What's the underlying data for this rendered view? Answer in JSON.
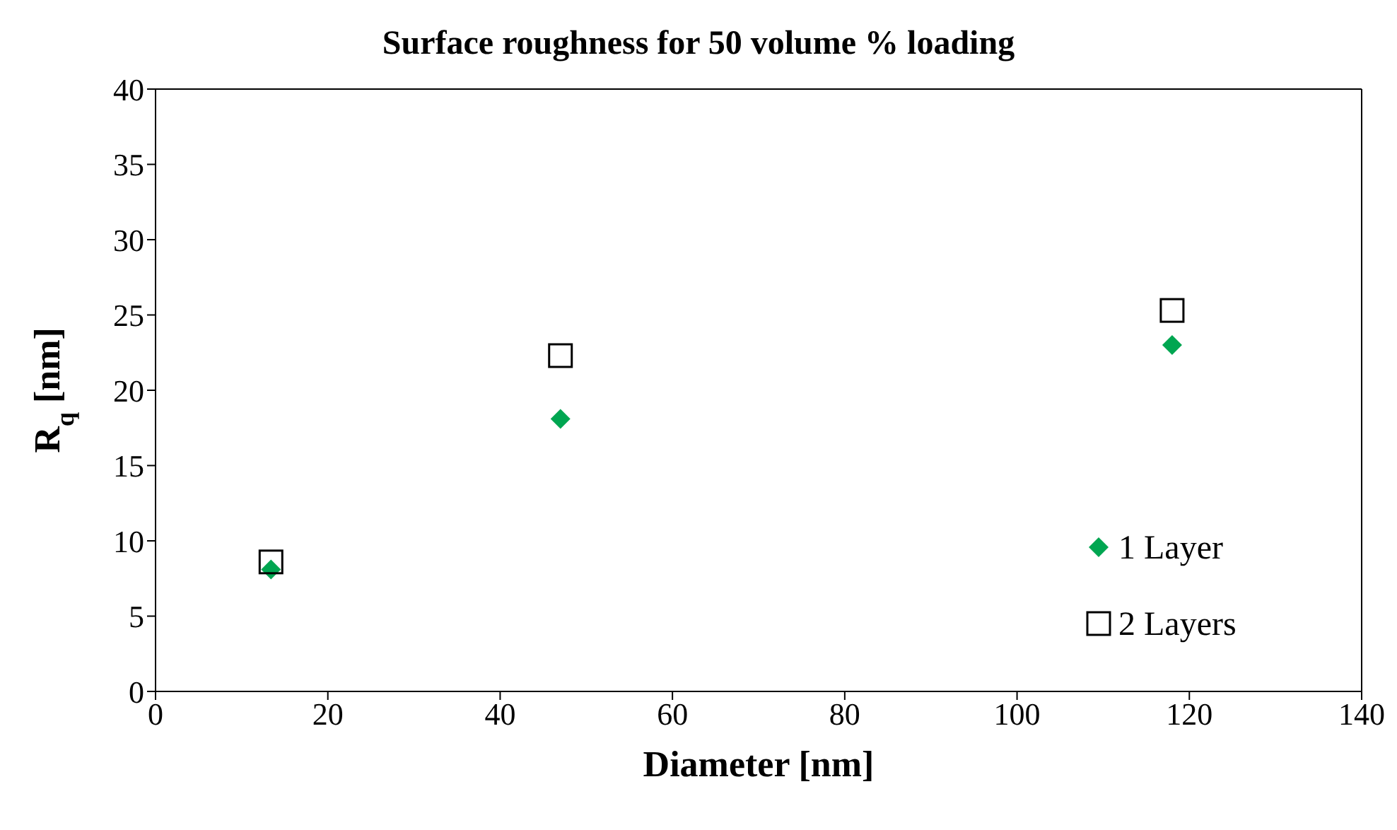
{
  "chart_data": {
    "type": "scatter",
    "title": "Surface roughness for 50 volume % loading",
    "xlabel": "Diameter [nm]",
    "ylabel": "R$_{q}$ [nm]",
    "series": [
      {
        "name": "1 Layer",
        "color": "#00a651",
        "marker": "diamond",
        "x": [
          13.4,
          47,
          118
        ],
        "values": [
          8.1,
          18.1,
          23.0
        ]
      },
      {
        "name": "2 Layers",
        "color": "#000000",
        "marker": "square",
        "x": [
          13.4,
          47,
          118
        ],
        "values": [
          8.6,
          22.3,
          25.3
        ]
      }
    ],
    "xlim": [
      0,
      140
    ],
    "xticks": [
      0,
      20,
      40,
      60,
      80,
      100,
      120,
      140
    ],
    "ylim": [
      0,
      40
    ],
    "yticks": [
      0,
      5,
      10,
      15,
      20,
      25,
      30,
      35,
      40
    ],
    "legend": "bottom right"
  }
}
